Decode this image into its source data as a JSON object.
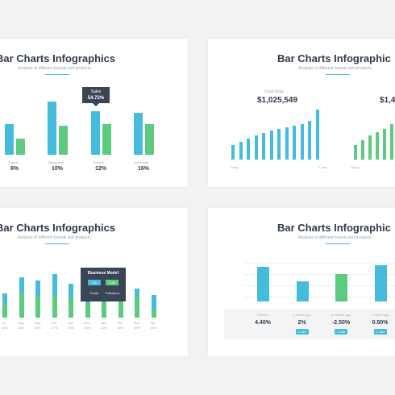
{
  "slide1": {
    "title": "Bar Charts Infographics",
    "subtitle": "Analysis of different brands and products.",
    "tooltip": {
      "label": "Sales",
      "value": "54.72%"
    },
    "months": [
      "August",
      "September",
      "October",
      "November"
    ],
    "values": [
      "6%",
      "10%",
      "12%",
      "16%"
    ]
  },
  "slide2": {
    "title": "Bar Charts Infographic",
    "subtitle": "Analysis of different brands and products.",
    "caption_left": "Cash Flow",
    "amount_left": "$1,025,549",
    "amount_right": "$1,4",
    "start_label": "Today",
    "end_label": "1 Year",
    "start_label_right": "Today"
  },
  "slide3": {
    "title": "Bar Charts Infographics",
    "subtitle": "Analysis of different brands and products.",
    "months": [
      "Jul",
      "Aug",
      "Sep",
      "Oct",
      "Nov",
      "Dec",
      "Jan",
      "Feb",
      "Mar",
      "Apr"
    ],
    "values": [
      "40%",
      "40%",
      "40%",
      "17%",
      "20%",
      "30%",
      "40%",
      "30%",
      "30%",
      "40%"
    ],
    "tooltip": {
      "title": "Business Model",
      "v1": "12k",
      "v2": "2.5k",
      "l1": "Posts",
      "l2": "Followers"
    }
  },
  "slide4": {
    "title": "Bar Charts Infographic",
    "subtitle": "Analysis of different brands and products.",
    "stats": [
      {
        "label": "Current",
        "value": "4.40%",
        "badge": ""
      },
      {
        "label": "1 month ago",
        "value": "2%",
        "badge": "1 mth"
      },
      {
        "label": "6 months ago",
        "value": "-2.50%",
        "badge": "1 mth"
      },
      {
        "label": "1 month ago",
        "value": "0.50%",
        "badge": "1 mth"
      }
    ]
  },
  "colors": {
    "blue": "#45bcdc",
    "green": "#5ccb7e",
    "dark": "#3a4556"
  }
}
